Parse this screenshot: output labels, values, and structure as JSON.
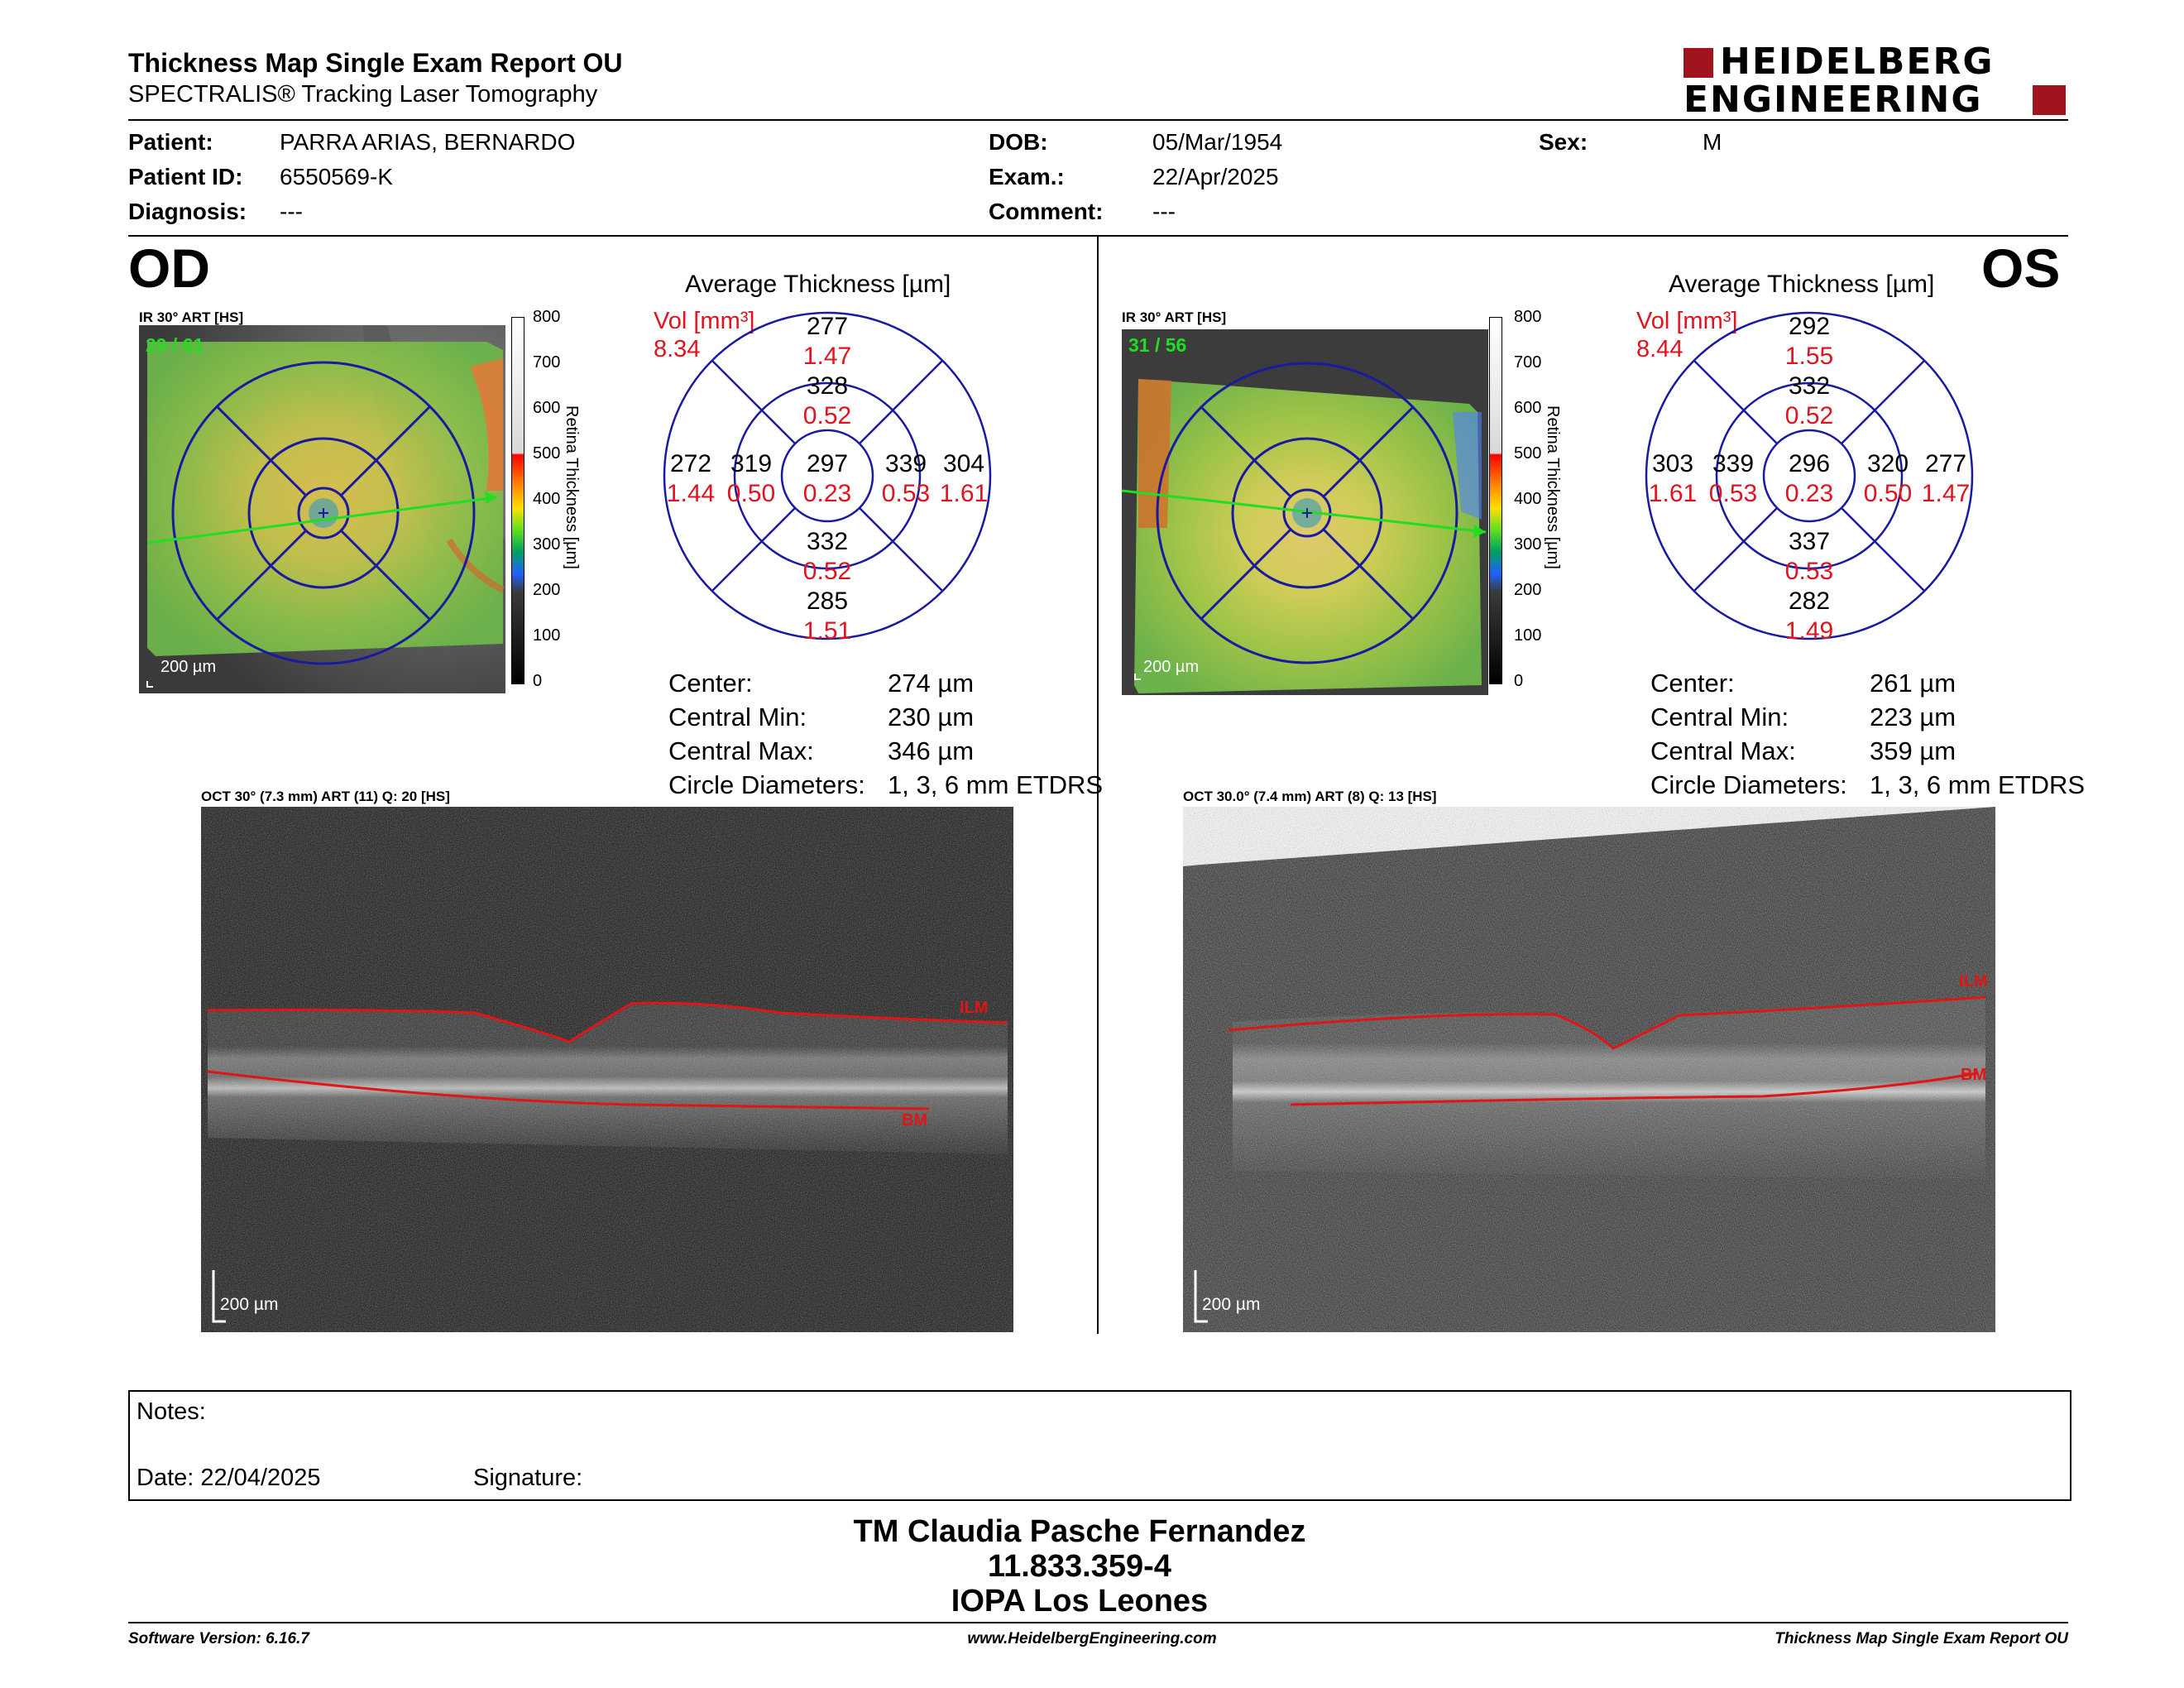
{
  "header": {
    "title": "Thickness Map Single Exam Report OU",
    "subtitle": "SPECTRALIS® Tracking Laser Tomography",
    "logo_line1": "HEIDELBERG",
    "logo_line2": "ENGINEERING"
  },
  "patient": {
    "patient_label": "Patient:",
    "patient_value": "PARRA ARIAS, BERNARDO",
    "id_label": "Patient ID:",
    "id_value": "6550569-K",
    "diagnosis_label": "Diagnosis:",
    "diagnosis_value": "---",
    "dob_label": "DOB:",
    "dob_value": "05/Mar/1954",
    "exam_label": "Exam.:",
    "exam_value": "22/Apr/2025",
    "comment_label": "Comment:",
    "comment_value": "---",
    "sex_label": "Sex:",
    "sex_value": "M"
  },
  "od": {
    "eye": "OD",
    "ir_label": "IR 30° ART [HS]",
    "frames": "29 / 61",
    "scale_bar": "200 µm",
    "avg_title": "Average Thickness [µm]",
    "vol_label": "Vol [mm³]",
    "vol_value": "8.34",
    "sectors": {
      "center": {
        "t": "297",
        "v": "0.23"
      },
      "inner_sup": {
        "t": "328",
        "v": "0.52"
      },
      "inner_inf": {
        "t": "332",
        "v": "0.52"
      },
      "inner_left": {
        "t": "319",
        "v": "0.50"
      },
      "inner_right": {
        "t": "339",
        "v": "0.53"
      },
      "outer_sup": {
        "t": "277",
        "v": "1.47"
      },
      "outer_inf": {
        "t": "285",
        "v": "1.51"
      },
      "outer_left": {
        "t": "272",
        "v": "1.44"
      },
      "outer_right": {
        "t": "304",
        "v": "1.61"
      }
    },
    "stats": {
      "center_label": "Center:",
      "center_value": "274 µm",
      "min_label": "Central Min:",
      "min_value": "230 µm",
      "max_label": "Central Max:",
      "max_value": "346 µm",
      "diam_label": "Circle Diameters:",
      "diam_value": "1, 3, 6 mm ETDRS"
    },
    "oct_label": "OCT 30° (7.3 mm) ART (11) Q: 20 [HS]",
    "oct_scale": "200 µm",
    "ilm": "ILM",
    "bm": "BM"
  },
  "os": {
    "eye": "OS",
    "ir_label": "IR 30° ART [HS]",
    "frames": "31 / 56",
    "scale_bar": "200 µm",
    "avg_title": "Average Thickness [µm]",
    "vol_label": "Vol [mm³]",
    "vol_value": "8.44",
    "sectors": {
      "center": {
        "t": "296",
        "v": "0.23"
      },
      "inner_sup": {
        "t": "332",
        "v": "0.52"
      },
      "inner_inf": {
        "t": "337",
        "v": "0.53"
      },
      "inner_left": {
        "t": "339",
        "v": "0.53"
      },
      "inner_right": {
        "t": "320",
        "v": "0.50"
      },
      "outer_sup": {
        "t": "292",
        "v": "1.55"
      },
      "outer_inf": {
        "t": "282",
        "v": "1.49"
      },
      "outer_left": {
        "t": "303",
        "v": "1.61"
      },
      "outer_right": {
        "t": "277",
        "v": "1.47"
      }
    },
    "stats": {
      "center_label": "Center:",
      "center_value": "261 µm",
      "min_label": "Central Min:",
      "min_value": "223 µm",
      "max_label": "Central Max:",
      "max_value": "359 µm",
      "diam_label": "Circle Diameters:",
      "diam_value": "1, 3, 6 mm ETDRS"
    },
    "oct_label": "OCT 30.0° (7.4 mm) ART (8) Q: 13 [HS]",
    "oct_scale": "200 µm",
    "ilm": "ILM",
    "bm": "BM"
  },
  "colorbar": {
    "ticks": [
      "800",
      "700",
      "600",
      "500",
      "400",
      "300",
      "200",
      "100",
      "0"
    ],
    "title": "Retina Thickness [µm]"
  },
  "notes": {
    "notes_label": "Notes:",
    "date_label": "Date: 22/04/2025",
    "signature_label": "Signature:"
  },
  "signatory": {
    "name": "TM Claudia Pasche Fernandez",
    "id": "11.833.359-4",
    "org": "IOPA Los Leones"
  },
  "footer": {
    "software": "Software Version: 6.16.7",
    "url": "www.HeidelbergEngineering.com",
    "report": "Thickness Map Single Exam Report OU"
  },
  "colors": {
    "grid_blue": "#1a1aa0",
    "red_text": "#e0141e",
    "brand_red": "#a0141e"
  }
}
